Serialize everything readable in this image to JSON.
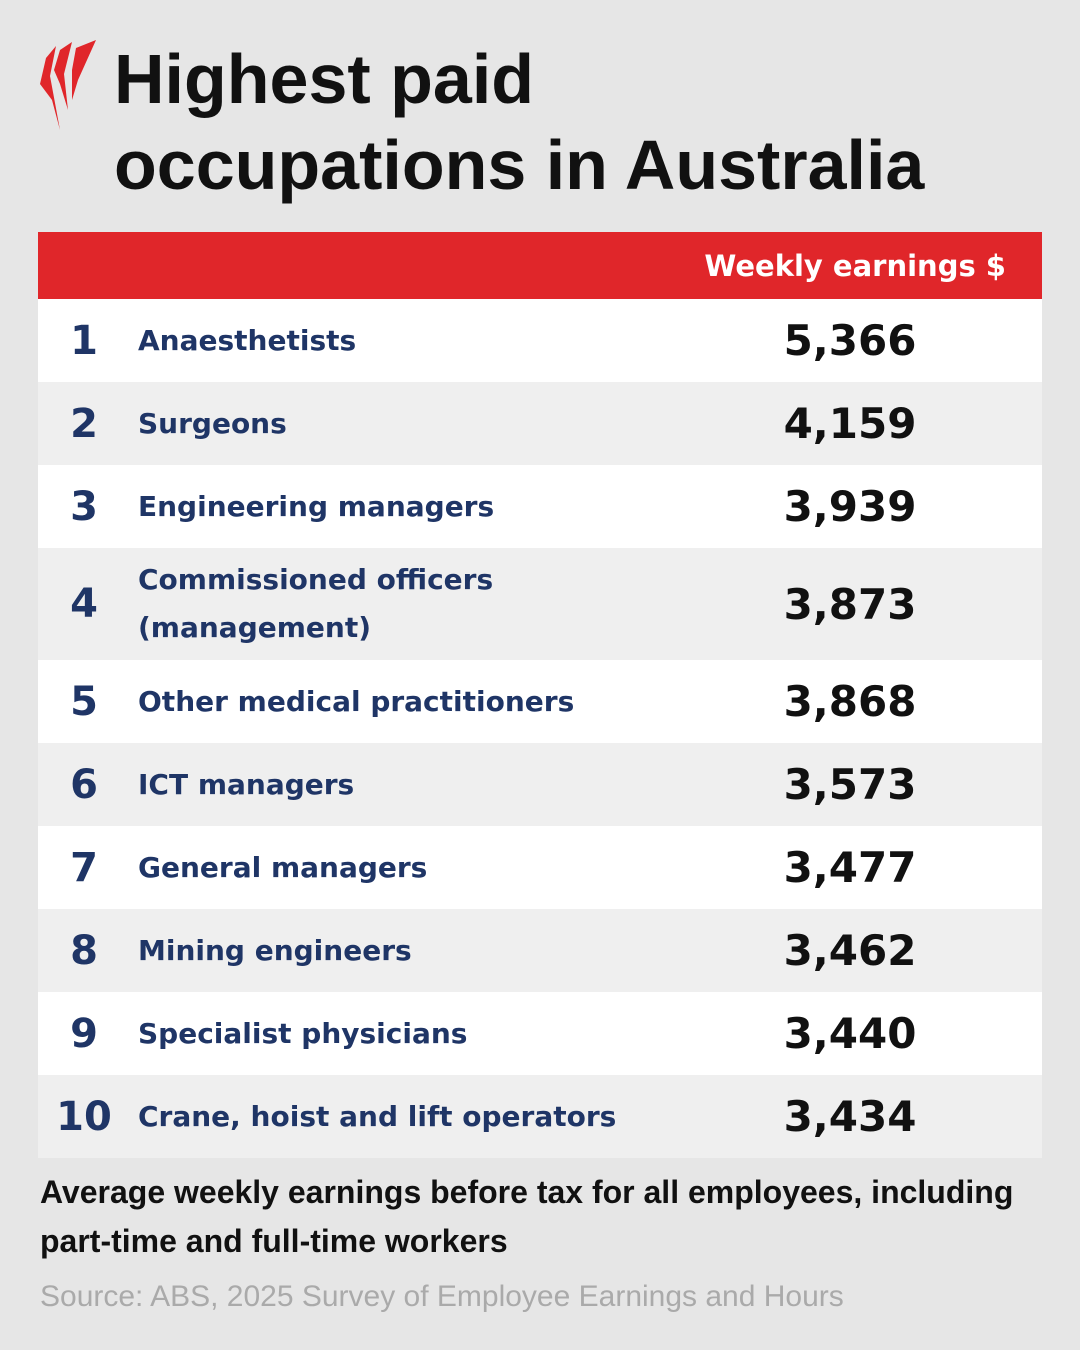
{
  "header": {
    "title_lines": [
      "Highest paid",
      "occupations in Australia"
    ]
  },
  "table": {
    "column_header": "Weekly earnings $",
    "rows": [
      [
        "1",
        "Anaesthetists",
        "5,366"
      ],
      [
        "2",
        "Surgeons",
        "4,159"
      ],
      [
        "3",
        "Engineering managers",
        "3,939"
      ],
      [
        "4",
        "Commissioned officers (management)",
        "3,873"
      ],
      [
        "5",
        "Other medical practitioners",
        "3,868"
      ],
      [
        "6",
        "ICT managers",
        "3,573"
      ],
      [
        "7",
        "General managers",
        "3,477"
      ],
      [
        "8",
        "Mining engineers",
        "3,462"
      ],
      [
        "9",
        "Specialist physicians",
        "3,440"
      ],
      [
        "10",
        "Crane, hoist and lift operators",
        "3,434"
      ]
    ]
  },
  "footnote": "Average weekly earnings before tax for all employees, including part-time and full-time workers",
  "source": "Source: ABS, 2025 Survey of Employee Earnings and Hours"
}
